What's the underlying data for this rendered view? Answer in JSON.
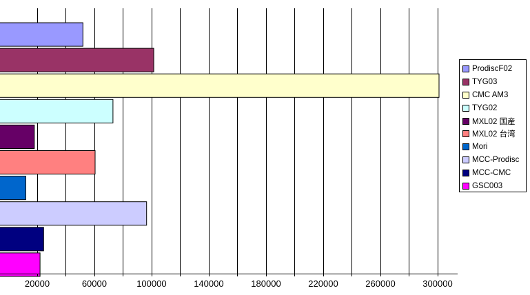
{
  "chart_data": {
    "type": "bar",
    "orientation": "horizontal",
    "categories": [
      "ProdiscF02",
      "TYG03",
      "CMC AM3",
      "TYG02",
      "MXL02 国産",
      "MXL02 台湾",
      "Mori",
      "MCC-Prodisc",
      "MCC-CMC",
      "GSC003"
    ],
    "values": [
      52000,
      101500,
      301000,
      73000,
      18000,
      60500,
      12000,
      96500,
      24500,
      22000
    ],
    "colors": [
      "#9999ff",
      "#993366",
      "#ffffcc",
      "#ccffff",
      "#660066",
      "#ff8080",
      "#0066cc",
      "#ccccff",
      "#000080",
      "#ff00ff"
    ],
    "xticks": [
      "20000",
      "60000",
      "100000",
      "140000",
      "180000",
      "220000",
      "260000",
      "300000"
    ],
    "xlim": [
      -6000,
      314000
    ],
    "grid": true,
    "legend_position": "right",
    "title": "",
    "xlabel": "",
    "ylabel": ""
  }
}
